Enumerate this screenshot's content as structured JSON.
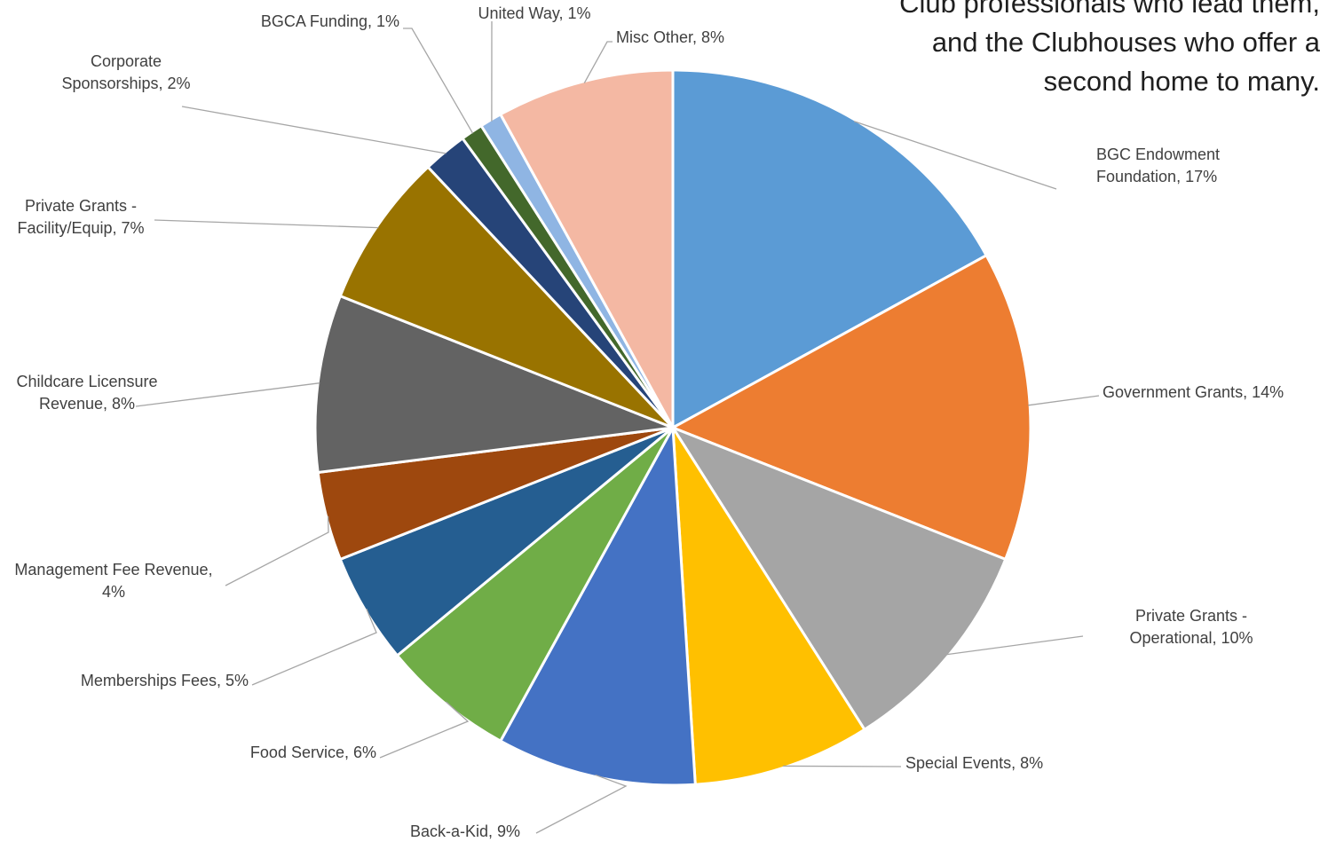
{
  "background_text": [
    "Club professionals who lead them,",
    "and the Clubhouses who offer a",
    "second home to many."
  ],
  "chart_data": {
    "type": "pie",
    "title": "",
    "slices": [
      {
        "label": "BGC Endowment Foundation, 17%",
        "value": 17,
        "color": "#5B9BD5"
      },
      {
        "label": "Government Grants, 14%",
        "value": 14,
        "color": "#ED7D31"
      },
      {
        "label": "Private Grants - Operational, 10%",
        "value": 10,
        "color": "#A5A5A5"
      },
      {
        "label": "Special Events, 8%",
        "value": 8,
        "color": "#FFC000"
      },
      {
        "label": "Back-a-Kid, 9%",
        "value": 9,
        "color": "#4472C4"
      },
      {
        "label": "Food Service, 6%",
        "value": 6,
        "color": "#70AD47"
      },
      {
        "label": "Memberships Fees, 5%",
        "value": 5,
        "color": "#255E91"
      },
      {
        "label": "Management Fee Revenue, 4%",
        "value": 4,
        "color": "#9E480E"
      },
      {
        "label": "Childcare Licensure Revenue, 8%",
        "value": 8,
        "color": "#636363"
      },
      {
        "label": "Private Grants - Facility/Equip, 7%",
        "value": 7,
        "color": "#997300"
      },
      {
        "label": "Corporate Sponsorships, 2%",
        "value": 2,
        "color": "#264478"
      },
      {
        "label": "BGCA Funding, 1%",
        "value": 1,
        "color": "#43682B"
      },
      {
        "label": "United Way, 1%",
        "value": 1,
        "color": "#8FB5E3"
      },
      {
        "label": "Misc Other, 8%",
        "value": 8,
        "color": "#F4B8A3"
      }
    ]
  }
}
